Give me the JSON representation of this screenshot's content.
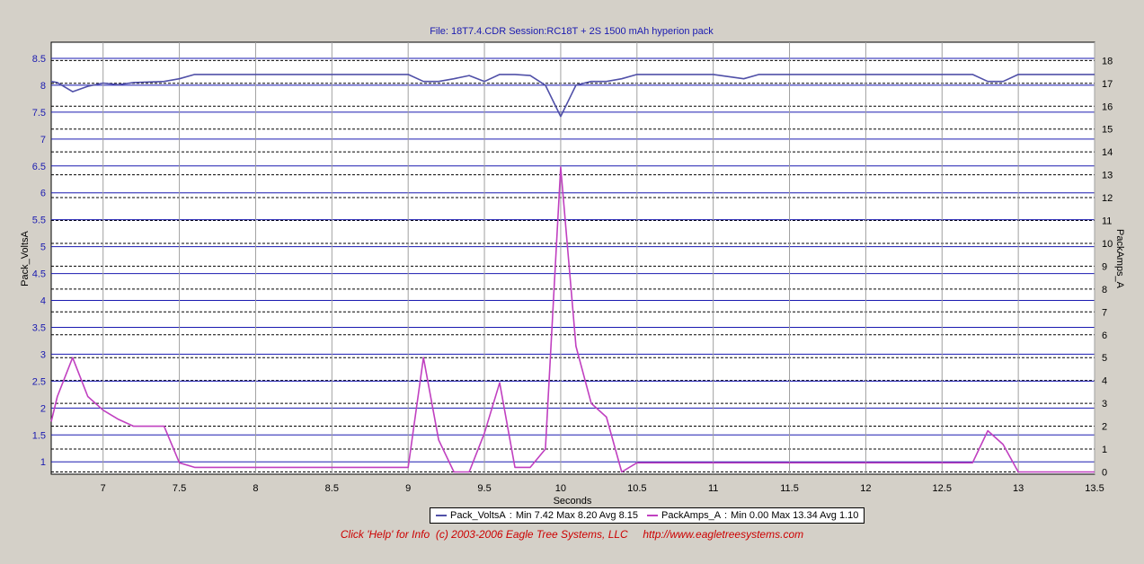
{
  "chart_data": {
    "type": "line",
    "title": "File: 18T7.4.CDR   Session:RC18T + 2S 1500 mAh hyperion pack",
    "xlabel": "Seconds",
    "ylabel_left": "Pack_VoltsA",
    "ylabel_right": "PackAmps_A",
    "xlim": [
      6.66,
      13.5
    ],
    "ylim_left": [
      0.77,
      8.8
    ],
    "ylim_right": [
      -0.1,
      18.8
    ],
    "x_ticks": [
      "7",
      "7.5",
      "8",
      "8.5",
      "9",
      "9.5",
      "10",
      "10.5",
      "11",
      "11.5",
      "12",
      "12.5",
      "13",
      "13.5"
    ],
    "y_left_ticks": [
      "1",
      "1.5",
      "2",
      "2.5",
      "3",
      "3.5",
      "4",
      "4.5",
      "5",
      "5.5",
      "6",
      "6.5",
      "7",
      "7.5",
      "8",
      "8.5"
    ],
    "y_right_ticks": [
      "0",
      "1",
      "2",
      "3",
      "4",
      "5",
      "6",
      "7",
      "8",
      "9",
      "10",
      "11",
      "12",
      "13",
      "14",
      "15",
      "16",
      "17",
      "18"
    ],
    "grid": true,
    "legend": "bottom",
    "series": [
      {
        "name": "Pack_VoltsA",
        "axis": "left",
        "color": "#5050a8",
        "stats": "Min 7.42 Max 8.20 Avg 8.15",
        "x": [
          6.66,
          6.7,
          6.8,
          6.9,
          7.0,
          7.1,
          7.2,
          7.4,
          7.5,
          7.6,
          8.0,
          8.5,
          9.0,
          9.1,
          9.2,
          9.3,
          9.4,
          9.5,
          9.6,
          9.7,
          9.8,
          9.9,
          10.0,
          10.1,
          10.2,
          10.3,
          10.4,
          10.5,
          10.6,
          11.0,
          11.2,
          11.3,
          11.5,
          12.0,
          12.5,
          12.7,
          12.8,
          12.9,
          13.0,
          13.1,
          13.5
        ],
        "y": [
          8.07,
          8.05,
          7.88,
          7.98,
          8.04,
          8.01,
          8.05,
          8.07,
          8.12,
          8.2,
          8.2,
          8.2,
          8.2,
          8.07,
          8.07,
          8.12,
          8.18,
          8.07,
          8.2,
          8.2,
          8.18,
          8.0,
          7.42,
          8.0,
          8.07,
          8.07,
          8.12,
          8.2,
          8.2,
          8.2,
          8.12,
          8.2,
          8.2,
          8.2,
          8.2,
          8.2,
          8.07,
          8.07,
          8.2,
          8.2,
          8.2
        ]
      },
      {
        "name": "PackAmps_A",
        "axis": "right",
        "color": "#c040c0",
        "stats": "Min 0.00 Max 13.34 Avg 1.10",
        "x": [
          6.66,
          6.7,
          6.8,
          6.9,
          7.0,
          7.1,
          7.2,
          7.3,
          7.4,
          7.5,
          7.6,
          8.0,
          8.5,
          9.0,
          9.1,
          9.2,
          9.3,
          9.4,
          9.5,
          9.6,
          9.7,
          9.8,
          9.9,
          10.0,
          10.1,
          10.2,
          10.3,
          10.4,
          10.5,
          11.0,
          11.5,
          12.0,
          12.5,
          12.7,
          12.8,
          12.9,
          13.0,
          13.5
        ],
        "y": [
          2.2,
          3.3,
          5.0,
          3.3,
          2.7,
          2.3,
          2.0,
          2.0,
          2.0,
          0.4,
          0.2,
          0.2,
          0.2,
          0.2,
          5.0,
          1.4,
          0.0,
          0.0,
          1.7,
          3.9,
          0.2,
          0.2,
          1.0,
          13.34,
          5.5,
          3.0,
          2.4,
          0.0,
          0.4,
          0.4,
          0.4,
          0.4,
          0.4,
          0.4,
          1.8,
          1.2,
          0.0,
          0.0
        ]
      }
    ]
  },
  "footer": "Click 'Help' for Info  (c) 2003-2006 Eagle Tree Systems, LLC     http://www.eagletreesystems.com"
}
